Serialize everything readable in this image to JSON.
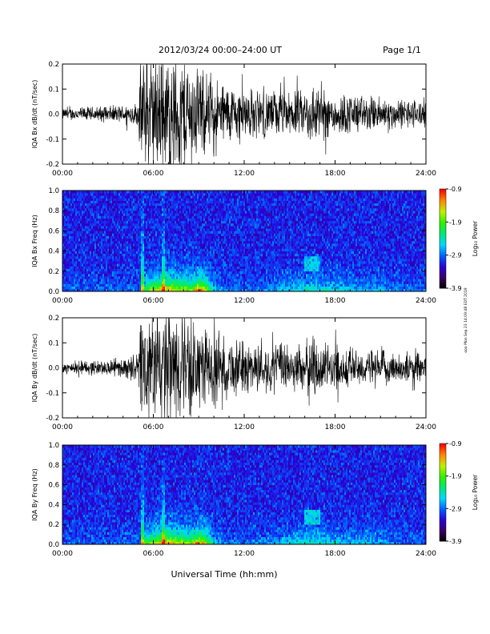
{
  "header": {
    "title": "2012/03/24  00:00–24:00 UT",
    "page": "Page 1/1"
  },
  "footer": {
    "xlabel": "Universal Time (hh:mm)",
    "side_note": "ooo Mon Sep 23 14:09:48 EDT 2019"
  },
  "colors": {
    "trace": "#000000",
    "colormap": [
      "#000000",
      "#3a0060",
      "#2a00d8",
      "#0060ff",
      "#00d8ff",
      "#00e878",
      "#30f000",
      "#c0f000",
      "#ff8800",
      "#ff0000"
    ]
  },
  "chart_data": [
    {
      "type": "line",
      "ylabel": "IQA Bx dB/dt (nT/sec)",
      "xlim": [
        0,
        24
      ],
      "ylim": [
        -0.2,
        0.2
      ],
      "xticks": [
        "00:00",
        "06:00",
        "12:00",
        "18:00",
        "24:00"
      ],
      "yticks": [
        "-0.2",
        "-0.1",
        "0.0",
        "0.1",
        "0.2"
      ],
      "series": [
        {
          "x_hours": [
            0,
            2,
            4,
            5,
            5.2,
            6,
            7,
            8,
            9,
            10,
            11,
            12,
            13,
            14,
            15,
            16,
            16.5,
            17,
            18,
            19,
            20,
            21,
            22,
            23,
            24
          ],
          "amplitude": [
            0.02,
            0.025,
            0.03,
            0.04,
            0.2,
            0.2,
            0.2,
            0.2,
            0.15,
            0.12,
            0.1,
            0.09,
            0.08,
            0.08,
            0.07,
            0.08,
            0.11,
            0.09,
            0.07,
            0.07,
            0.06,
            0.06,
            0.05,
            0.05,
            0.05
          ]
        }
      ]
    },
    {
      "type": "heatmap",
      "ylabel": "IQA Bx Freq (Hz)",
      "xlim": [
        0,
        24
      ],
      "ylim": [
        0.0,
        1.0
      ],
      "xticks": [
        "00:00",
        "06:00",
        "12:00",
        "18:00",
        "24:00"
      ],
      "yticks": [
        "0.0",
        "0.2",
        "0.4",
        "0.6",
        "0.8",
        "1.0"
      ],
      "colorbar": {
        "label": "Log₁₀ Power",
        "ticks": [
          "-0.9",
          "-1.9",
          "-2.9",
          "-3.9"
        ],
        "range": [
          -3.9,
          -0.9
        ]
      }
    },
    {
      "type": "line",
      "ylabel": "IQA By dB/dt (nT/sec)",
      "xlim": [
        0,
        24
      ],
      "ylim": [
        -0.2,
        0.2
      ],
      "xticks": [
        "00:00",
        "06:00",
        "12:00",
        "18:00",
        "24:00"
      ],
      "yticks": [
        "-0.2",
        "-0.1",
        "0.0",
        "0.1",
        "0.2"
      ],
      "series": [
        {
          "x_hours": [
            0,
            2,
            4,
            5,
            5.2,
            6,
            7,
            8,
            9,
            10,
            11,
            12,
            13,
            14,
            15,
            16,
            16.5,
            17,
            18,
            19,
            20,
            21,
            22,
            23,
            24
          ],
          "amplitude": [
            0.02,
            0.025,
            0.03,
            0.05,
            0.2,
            0.2,
            0.2,
            0.2,
            0.14,
            0.12,
            0.1,
            0.09,
            0.08,
            0.08,
            0.08,
            0.08,
            0.12,
            0.09,
            0.07,
            0.07,
            0.06,
            0.06,
            0.05,
            0.05,
            0.05
          ]
        }
      ]
    },
    {
      "type": "heatmap",
      "ylabel": "IQA By Freq (Hz)",
      "xlim": [
        0,
        24
      ],
      "ylim": [
        0.0,
        1.0
      ],
      "xticks": [
        "00:00",
        "06:00",
        "12:00",
        "18:00",
        "24:00"
      ],
      "yticks": [
        "0.0",
        "0.2",
        "0.4",
        "0.6",
        "0.8",
        "1.0"
      ],
      "colorbar": {
        "label": "Log₁₀ Power",
        "ticks": [
          "-0.9",
          "-1.9",
          "-2.9",
          "-3.9"
        ],
        "range": [
          -3.9,
          -0.9
        ]
      }
    }
  ]
}
